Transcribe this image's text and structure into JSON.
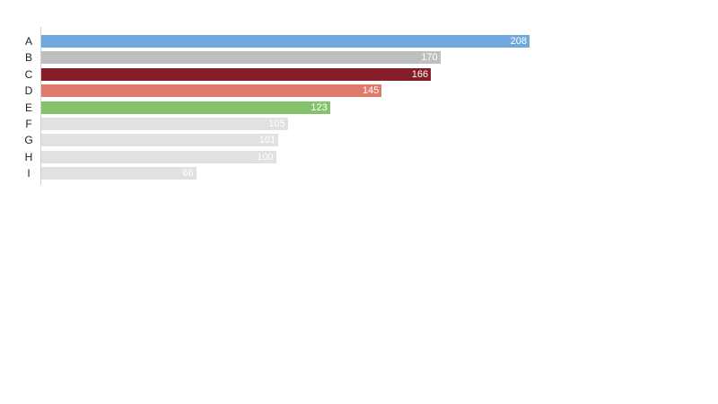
{
  "chart_data": {
    "type": "bar",
    "orientation": "horizontal",
    "title": "",
    "xlabel": "",
    "ylabel": "",
    "categories": [
      "A",
      "B",
      "C",
      "D",
      "E",
      "F",
      "G",
      "H",
      "I"
    ],
    "values": [
      208,
      170,
      166,
      145,
      123,
      105,
      101,
      100,
      66
    ],
    "colors": [
      "#6fa8dc",
      "#c0bfc0",
      "#861e2a",
      "#e07b6c",
      "#85c26c",
      "#e1e1e2",
      "#e1e1e2",
      "#e1e1e2",
      "#e1e1e2"
    ],
    "xlim": [
      0,
      208
    ],
    "grid": false,
    "legend": "none",
    "data_labels": true
  }
}
